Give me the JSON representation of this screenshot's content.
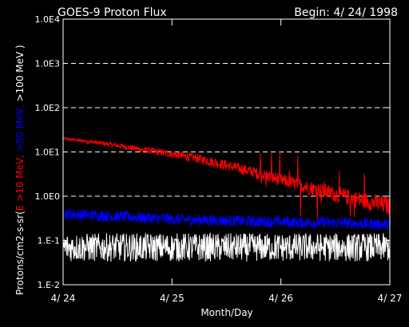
{
  "chart_data": {
    "type": "line",
    "title": "GOES-9 Proton Flux",
    "subtitle": "Begin: 4/ 24/ 1998",
    "xlabel": "Month/Day",
    "ylabel_parts": {
      "prefix": "Protons/cm2-s-sr(",
      "e10": "E >10 MeV,",
      "e50": " >50 MeV,",
      "e100": " >100 MeV )"
    },
    "y_scale": "log",
    "ylim": [
      0.01,
      10000
    ],
    "y_ticks": [
      {
        "value": 10000,
        "label": "1.0E4"
      },
      {
        "value": 1000,
        "label": "1.0E3"
      },
      {
        "value": 100,
        "label": "1.0E2"
      },
      {
        "value": 10,
        "label": "1.0E1"
      },
      {
        "value": 1,
        "label": "1.0E0"
      },
      {
        "value": 0.1,
        "label": "1.E-1"
      },
      {
        "value": 0.01,
        "label": "1.E-2"
      }
    ],
    "x_ticks": [
      {
        "value": 0,
        "label": "4/ 24"
      },
      {
        "value": 1,
        "label": "4/ 25"
      },
      {
        "value": 2,
        "label": "4/ 26"
      },
      {
        "value": 3,
        "label": "4/ 27"
      }
    ],
    "xlim": [
      0,
      3
    ],
    "grid": "dashed at decades 1.0E0 to 1.0E3",
    "series": [
      {
        "key": "e10",
        "color": "#ff0000",
        "x": [
          0.0,
          0.25,
          0.5,
          0.75,
          1.0,
          1.25,
          1.5,
          1.75,
          2.0,
          2.25,
          2.5,
          2.75,
          3.0
        ],
        "y": [
          20,
          17,
          14,
          11,
          9,
          7,
          5,
          3.5,
          2.3,
          1.6,
          1.1,
          0.8,
          0.6
        ]
      },
      {
        "key": "e50",
        "color": "#0000ff",
        "x": [
          0.0,
          0.5,
          1.0,
          1.5,
          2.0,
          2.5,
          3.0
        ],
        "y": [
          0.4,
          0.35,
          0.3,
          0.28,
          0.26,
          0.25,
          0.23
        ]
      },
      {
        "key": "e100",
        "color": "#ffffff",
        "x": [
          0.0,
          1.0,
          2.0,
          3.0
        ],
        "y": [
          0.07,
          0.07,
          0.07,
          0.07
        ]
      }
    ]
  }
}
